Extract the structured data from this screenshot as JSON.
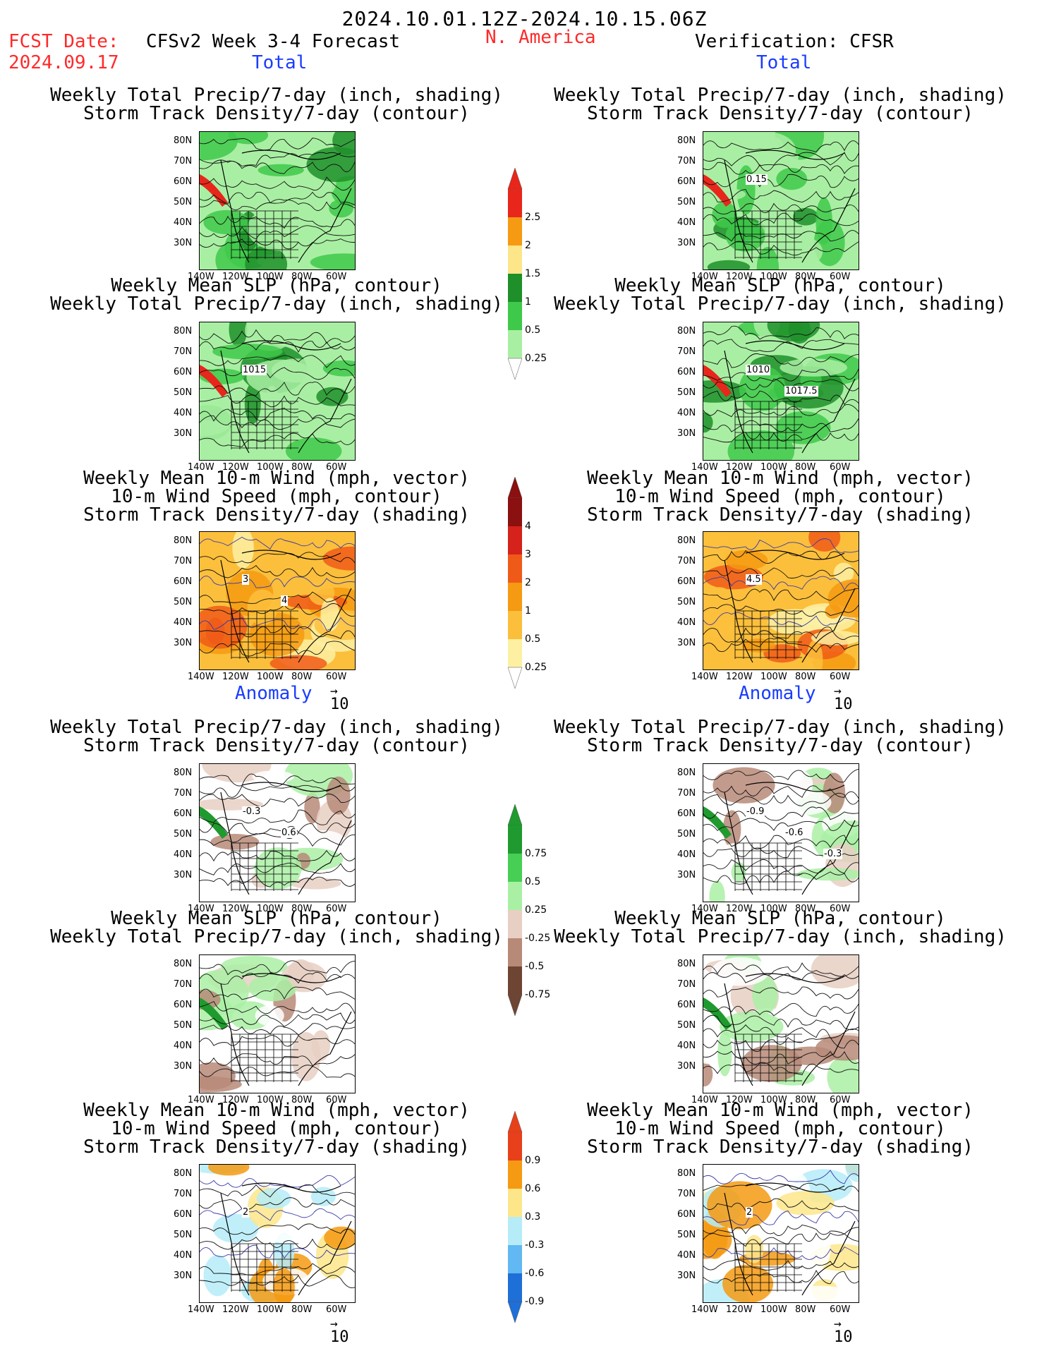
{
  "header": {
    "period": "2024.10.01.12Z-2024.10.15.06Z",
    "region": "N. America",
    "fcst_label": "FCST Date:",
    "fcst_date": "2024.09.17",
    "model": "CFSv2 Week 3-4 Forecast",
    "verification": "Verification: CFSR",
    "total_label": "Total",
    "anomaly_label": "Anomaly"
  },
  "panels": [
    {
      "title": [
        "Weekly Total Precip/7-day (inch, shading)",
        "Storm Track Density/7-day (contour)"
      ],
      "labels": []
    },
    {
      "title": [
        "Weekly Mean SLP (hPa, contour)",
        "Weekly Total Precip/7-day (inch, shading)"
      ],
      "labels": [
        "1015"
      ]
    },
    {
      "title": [
        "Weekly Mean 10-m Wind (mph, vector)",
        "10-m Wind Speed (mph, contour)",
        "Storm Track Density/7-day (shading)"
      ],
      "labels": [
        "3",
        "4"
      ]
    },
    {
      "title": [
        "Weekly Total Precip/7-day (inch, shading)",
        "Storm Track Density/7-day (contour)"
      ],
      "labels": [
        "-0.3",
        "0.6"
      ]
    },
    {
      "title": [
        "Weekly Mean SLP (hPa, contour)",
        "Weekly Total Precip/7-day (inch, shading)"
      ],
      "labels": []
    },
    {
      "title": [
        "Weekly Mean 10-m Wind (mph, vector)",
        "10-m Wind Speed (mph, contour)",
        "Storm Track Density/7-day (shading)"
      ],
      "labels": [
        "2"
      ]
    },
    {
      "title": [
        "Weekly Total Precip/7-day (inch, shading)",
        "Storm Track Density/7-day (contour)"
      ],
      "labels": [
        "0.15"
      ]
    },
    {
      "title": [
        "Weekly Mean SLP (hPa, contour)",
        "Weekly Total Precip/7-day (inch, shading)"
      ],
      "labels": [
        "1010",
        "1017.5"
      ]
    },
    {
      "title": [
        "Weekly Mean 10-m Wind (mph, vector)",
        "10-m Wind Speed (mph, contour)",
        "Storm Track Density/7-day (shading)"
      ],
      "labels": [
        "4.5"
      ]
    },
    {
      "title": [
        "Weekly Total Precip/7-day (inch, shading)",
        "Storm Track Density/7-day (contour)"
      ],
      "labels": [
        "-0.9",
        "-0.6",
        "-0.3"
      ]
    },
    {
      "title": [
        "Weekly Mean SLP (hPa, contour)",
        "Weekly Total Precip/7-day (inch, shading)"
      ],
      "labels": []
    },
    {
      "title": [
        "Weekly Mean 10-m Wind (mph, vector)",
        "10-m Wind Speed (mph, contour)",
        "Storm Track Density/7-day (shading)"
      ],
      "labels": [
        "2"
      ]
    }
  ],
  "axes": {
    "lat": [
      "80N",
      "70N",
      "60N",
      "50N",
      "40N",
      "30N"
    ],
    "lon": [
      "140W",
      "120W",
      "100W",
      "80W",
      "60W"
    ]
  },
  "vector_ref": "10",
  "colorbars": [
    {
      "name": "precip-total",
      "labels": [
        "2.5",
        "2",
        "1.5",
        "1",
        "0.5",
        "0.25"
      ],
      "colors": [
        "#e8261b",
        "#f59a12",
        "#fde68a",
        "#1f8f2a",
        "#3fc94a",
        "#a9efa3"
      ]
    },
    {
      "name": "storm-total",
      "labels": [
        "4",
        "3",
        "2",
        "1",
        "0.5",
        "0.25"
      ],
      "colors": [
        "#8b1010",
        "#d5221a",
        "#f05a18",
        "#f59a12",
        "#fbbf3c",
        "#fdf0a2"
      ]
    },
    {
      "name": "precip-anom",
      "labels": [
        "0.75",
        "0.5",
        "0.25",
        "-0.25",
        "-0.5",
        "-0.75"
      ],
      "colors": [
        "#1f9a2e",
        "#47cf55",
        "#aaf0a4",
        "#e8cfc3",
        "#b78a78",
        "#6e4532"
      ]
    },
    {
      "name": "storm-anom",
      "labels": [
        "0.9",
        "0.6",
        "0.3",
        "-0.3",
        "-0.6",
        "-0.9"
      ],
      "colors": [
        "#e8401b",
        "#f59a12",
        "#fde68a",
        "#b5ecf8",
        "#61b8f2",
        "#1f6fd8"
      ]
    }
  ]
}
